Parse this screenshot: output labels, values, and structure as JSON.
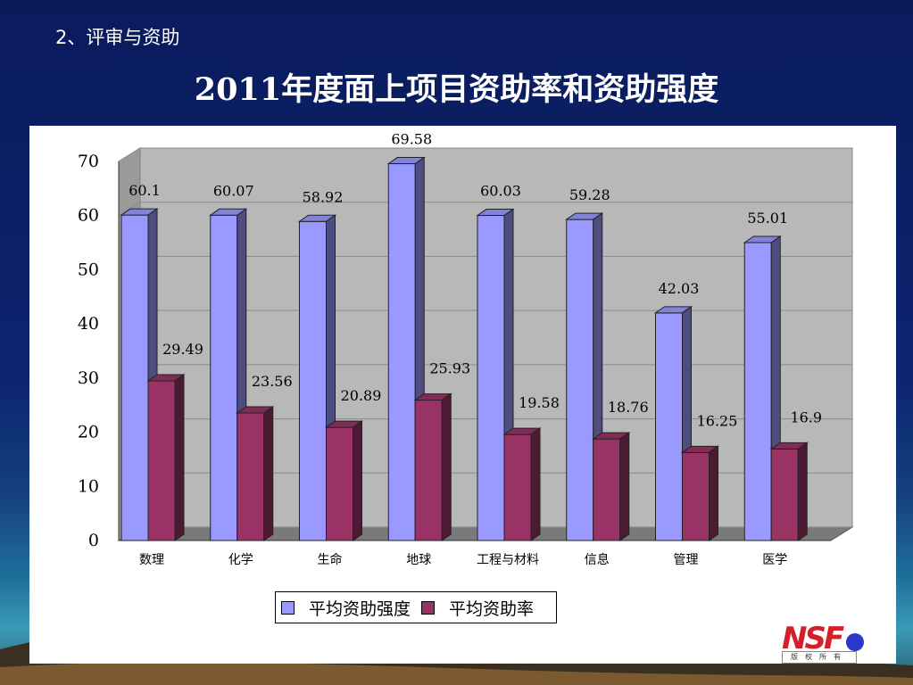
{
  "header": {
    "section_label": "2、评审与资助",
    "title": "2011年度面上项目资助率和资助强度"
  },
  "chart_data": {
    "type": "bar",
    "categories": [
      "数理",
      "化学",
      "生命",
      "地球",
      "工程与材料",
      "信息",
      "管理",
      "医学"
    ],
    "series": [
      {
        "name": "平均资助强度",
        "color": "#9999ff",
        "values": [
          60.1,
          60.07,
          58.92,
          69.58,
          60.03,
          59.28,
          42.03,
          55.01
        ]
      },
      {
        "name": "平均资助率",
        "color": "#993366",
        "values": [
          29.49,
          23.56,
          20.89,
          25.93,
          19.58,
          18.76,
          16.25,
          16.9
        ]
      }
    ],
    "ylim": [
      0,
      70
    ],
    "yticks": [
      0,
      10,
      20,
      30,
      40,
      50,
      60,
      70
    ],
    "grid": true,
    "three_d": true,
    "legend_position": "bottom"
  },
  "logo": {
    "text": "NSF",
    "caption": "版权所有"
  }
}
